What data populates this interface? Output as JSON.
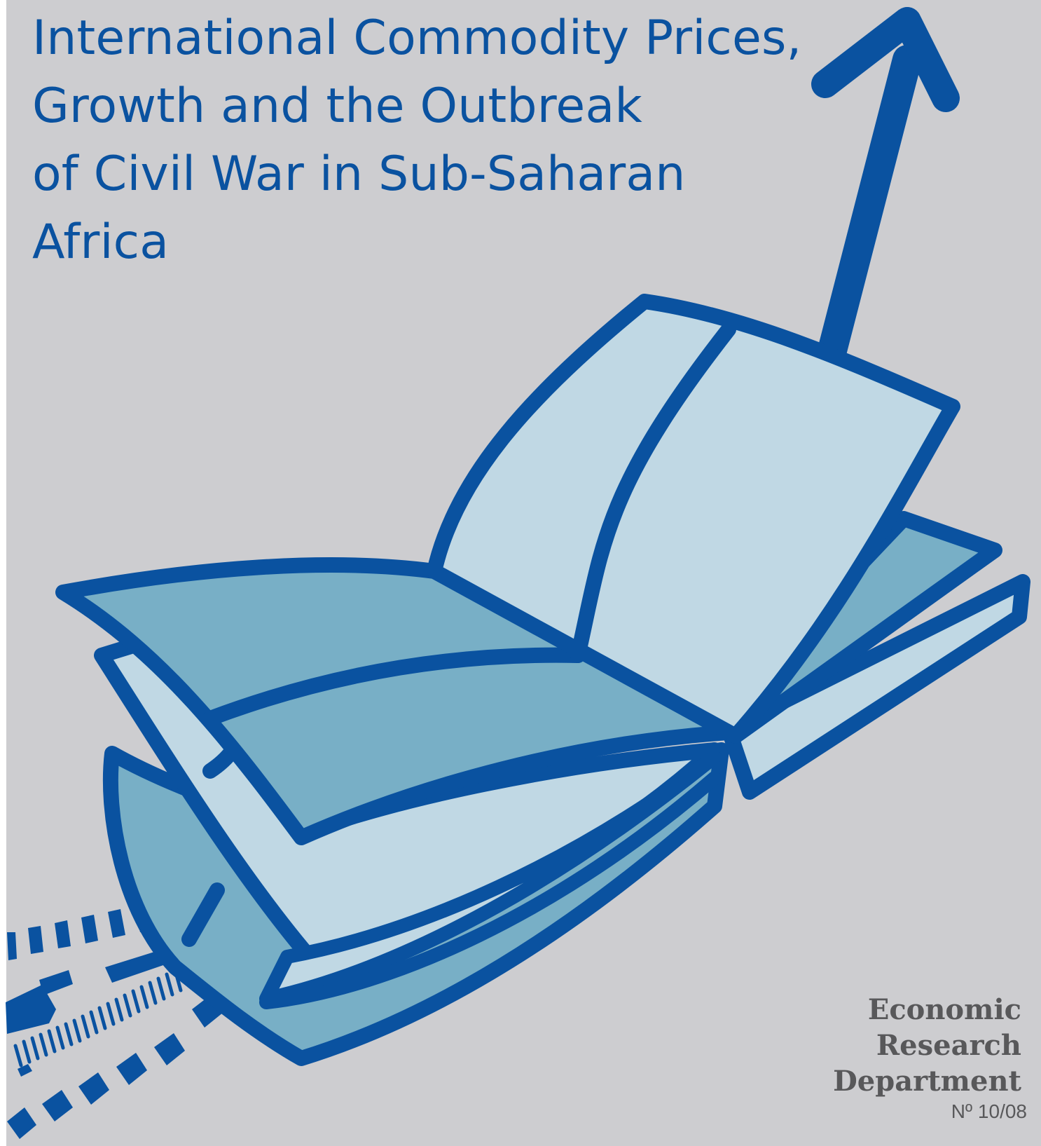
{
  "cover": {
    "title_lines": [
      "International Commodity Prices,",
      "Growth and the Outbreak",
      "of Civil War in Sub-Saharan",
      "Africa"
    ],
    "publisher_lines": [
      "Economic",
      "Research",
      "Department"
    ],
    "issue_number": "Nº 10/08"
  },
  "colors": {
    "background": "#cdcdd0",
    "outline_blue": "#0a52a0",
    "page_light": "#c0d8e4",
    "page_mid": "#78afc6",
    "publisher_text": "#58585a"
  },
  "icons": {
    "illustration": "open-book-with-rising-arrow-icon"
  }
}
